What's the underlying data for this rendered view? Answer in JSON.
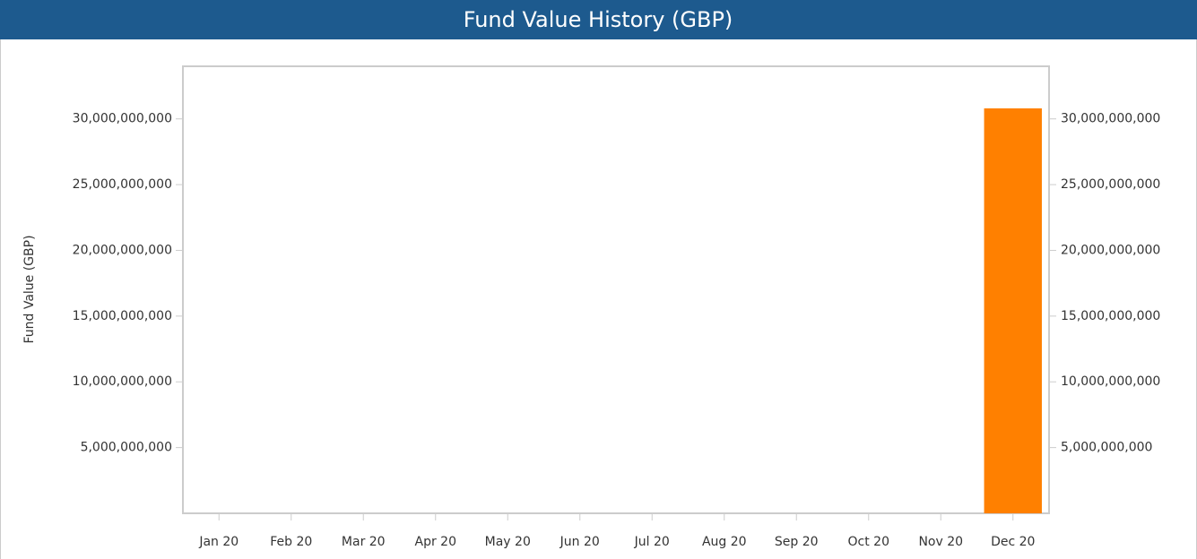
{
  "chart_data": {
    "type": "bar",
    "title": "Fund Value History (GBP)",
    "y_label": "Fund Value (GBP)",
    "categories": [
      "Jan 20",
      "Feb 20",
      "Mar 20",
      "Apr 20",
      "May 20",
      "Jun 20",
      "Jul 20",
      "Aug 20",
      "Sep 20",
      "Oct 20",
      "Nov 20",
      "Dec 20"
    ],
    "values": [
      null,
      null,
      null,
      null,
      null,
      null,
      null,
      null,
      null,
      null,
      null,
      30800000000
    ],
    "color": "#ff8000",
    "ylim": [
      0,
      34000000000
    ],
    "yticks": [
      {
        "value": 5000000000,
        "label": "5,000,000,000"
      },
      {
        "value": 10000000000,
        "label": "10,000,000,000"
      },
      {
        "value": 15000000000,
        "label": "15,000,000,000"
      },
      {
        "value": 20000000000,
        "label": "20,000,000,000"
      },
      {
        "value": 25000000000,
        "label": "25,000,000,000"
      },
      {
        "value": 30000000000,
        "label": "30,000,000,000"
      }
    ],
    "y2lim": [
      0,
      34000000000
    ],
    "y2ticks": [
      {
        "value": 5000000000,
        "label": "5,000,000,000"
      },
      {
        "value": 10000000000,
        "label": "10,000,000,000"
      },
      {
        "value": 15000000000,
        "label": "15,000,000,000"
      },
      {
        "value": 20000000000,
        "label": "20,000,000,000"
      },
      {
        "value": 25000000000,
        "label": "25,000,000,000"
      },
      {
        "value": 30000000000,
        "label": "30,000,000,000"
      }
    ],
    "grid": false
  }
}
